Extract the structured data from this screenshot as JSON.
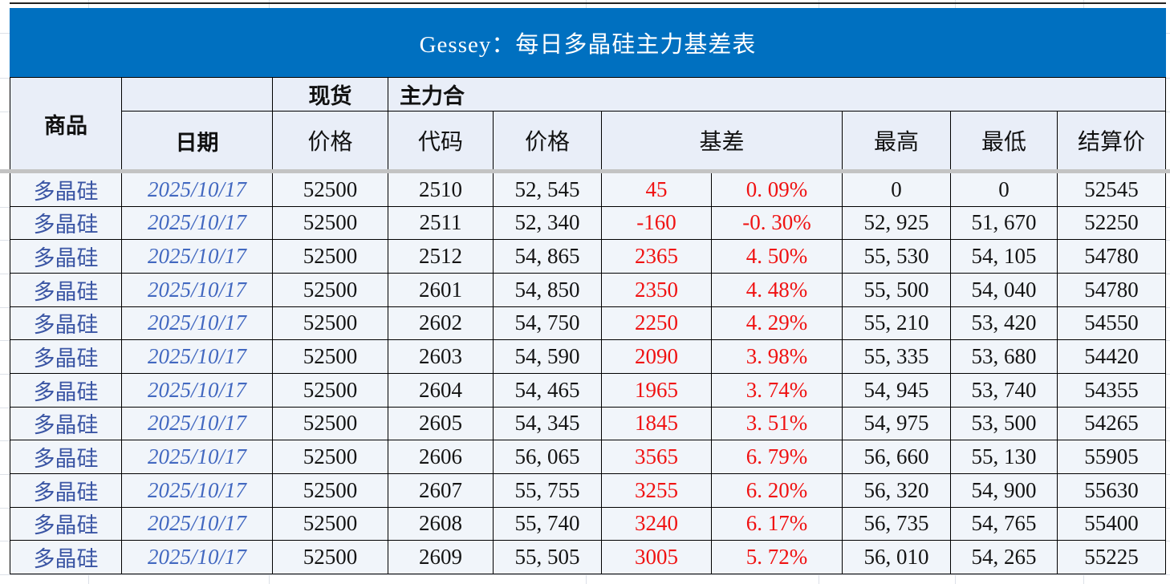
{
  "title": "Gessey：每日多晶硅主力基差表",
  "header": {
    "commodity": "商品",
    "spot_group": "现货",
    "main_group": "主力合",
    "date": "日期",
    "spot_price": "价格",
    "code": "代码",
    "main_price": "价格",
    "basis": "基差",
    "high": "最高",
    "low": "最低",
    "settle": "结算价"
  },
  "colors": {
    "banner_blue": "#0070C0",
    "banner_text": "#FFFFFF",
    "header_bg": "#E9EEF8",
    "row_bg": "#F1F5FA",
    "separator_gray": "#C3C3C3",
    "commodity_blue": "#3A55A4",
    "date_blue": "#4268C0",
    "basis_red": "#F01212",
    "border_black": "#000000"
  },
  "rows": [
    {
      "commodity": "多晶硅",
      "date": "2025/10/17",
      "spot_price": "52500",
      "code": "2510",
      "price": "52, 545",
      "basis": "45",
      "basis_pct": "0. 09%",
      "high": "0",
      "low": "0",
      "settle": "52545"
    },
    {
      "commodity": "多晶硅",
      "date": "2025/10/17",
      "spot_price": "52500",
      "code": "2511",
      "price": "52, 340",
      "basis": "-160",
      "basis_pct": "-0. 30%",
      "high": "52, 925",
      "low": "51, 670",
      "settle": "52250"
    },
    {
      "commodity": "多晶硅",
      "date": "2025/10/17",
      "spot_price": "52500",
      "code": "2512",
      "price": "54, 865",
      "basis": "2365",
      "basis_pct": "4. 50%",
      "high": "55, 530",
      "low": "54, 105",
      "settle": "54780"
    },
    {
      "commodity": "多晶硅",
      "date": "2025/10/17",
      "spot_price": "52500",
      "code": "2601",
      "price": "54, 850",
      "basis": "2350",
      "basis_pct": "4. 48%",
      "high": "55, 500",
      "low": "54, 040",
      "settle": "54780"
    },
    {
      "commodity": "多晶硅",
      "date": "2025/10/17",
      "spot_price": "52500",
      "code": "2602",
      "price": "54, 750",
      "basis": "2250",
      "basis_pct": "4. 29%",
      "high": "55, 210",
      "low": "53, 420",
      "settle": "54550"
    },
    {
      "commodity": "多晶硅",
      "date": "2025/10/17",
      "spot_price": "52500",
      "code": "2603",
      "price": "54, 590",
      "basis": "2090",
      "basis_pct": "3. 98%",
      "high": "55, 335",
      "low": "53, 680",
      "settle": "54420"
    },
    {
      "commodity": "多晶硅",
      "date": "2025/10/17",
      "spot_price": "52500",
      "code": "2604",
      "price": "54, 465",
      "basis": "1965",
      "basis_pct": "3. 74%",
      "high": "54, 945",
      "low": "53, 740",
      "settle": "54355"
    },
    {
      "commodity": "多晶硅",
      "date": "2025/10/17",
      "spot_price": "52500",
      "code": "2605",
      "price": "54, 345",
      "basis": "1845",
      "basis_pct": "3. 51%",
      "high": "54, 975",
      "low": "53, 500",
      "settle": "54265"
    },
    {
      "commodity": "多晶硅",
      "date": "2025/10/17",
      "spot_price": "52500",
      "code": "2606",
      "price": "56, 065",
      "basis": "3565",
      "basis_pct": "6. 79%",
      "high": "56, 660",
      "low": "55, 130",
      "settle": "55905"
    },
    {
      "commodity": "多晶硅",
      "date": "2025/10/17",
      "spot_price": "52500",
      "code": "2607",
      "price": "55, 755",
      "basis": "3255",
      "basis_pct": "6. 20%",
      "high": "56, 320",
      "low": "54, 900",
      "settle": "55630"
    },
    {
      "commodity": "多晶硅",
      "date": "2025/10/17",
      "spot_price": "52500",
      "code": "2608",
      "price": "55, 740",
      "basis": "3240",
      "basis_pct": "6. 17%",
      "high": "56, 735",
      "low": "54, 765",
      "settle": "55400"
    },
    {
      "commodity": "多晶硅",
      "date": "2025/10/17",
      "spot_price": "52500",
      "code": "2609",
      "price": "55, 505",
      "basis": "3005",
      "basis_pct": "5. 72%",
      "high": "56, 010",
      "low": "54, 265",
      "settle": "55225"
    }
  ]
}
